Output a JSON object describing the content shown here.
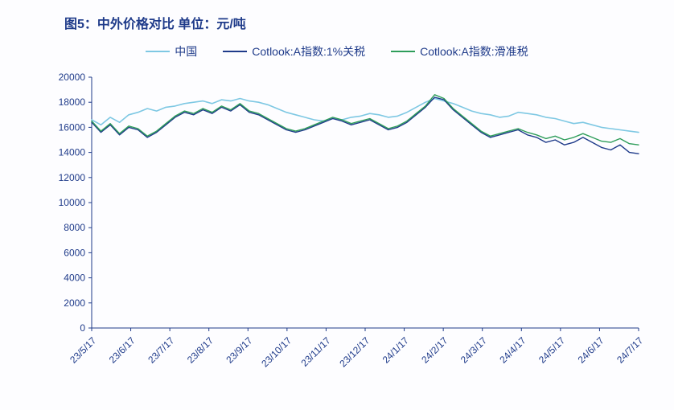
{
  "title": "图5：中外价格对比 单位：元/吨",
  "chart": {
    "type": "line",
    "background_color": "#fdfdff",
    "title_color": "#1f3b8a",
    "axis_color": "#1f3b8a",
    "label_color": "#1f3b8a",
    "label_fontsize": 12,
    "title_fontsize": 16,
    "ylim": [
      0,
      20000
    ],
    "ytick_step": 2000,
    "yticks": [
      0,
      2000,
      4000,
      6000,
      8000,
      10000,
      12000,
      14000,
      16000,
      18000,
      20000
    ],
    "x_categories": [
      "23/5/17",
      "23/6/17",
      "23/7/17",
      "23/8/17",
      "23/9/17",
      "23/10/17",
      "23/11/17",
      "23/12/17",
      "24/1/17",
      "24/2/17",
      "24/3/17",
      "24/4/17",
      "24/5/17",
      "24/6/17",
      "24/7/17"
    ],
    "x_label_rotation": -45,
    "legend_position": "top-center",
    "series": [
      {
        "name": "中国",
        "color": "#7ec8e3",
        "line_width": 1.6,
        "values": [
          16600,
          16200,
          16800,
          16400,
          17000,
          17200,
          17500,
          17300,
          17600,
          17700,
          17900,
          18000,
          18100,
          17900,
          18200,
          18100,
          18300,
          18100,
          18000,
          17800,
          17500,
          17200,
          17000,
          16800,
          16600,
          16500,
          16700,
          16600,
          16800,
          16900,
          17100,
          17000,
          16800,
          16900,
          17200,
          17600,
          18000,
          18300,
          18100,
          17900,
          17600,
          17300,
          17100,
          17000,
          16800,
          16900,
          17200,
          17100,
          17000,
          16800,
          16700,
          16500,
          16300,
          16400,
          16200,
          16000,
          15900,
          15800,
          15700,
          15600
        ]
      },
      {
        "name": "Cotlook:A指数:1%关税",
        "color": "#1f3b8a",
        "line_width": 1.4,
        "values": [
          16400,
          15600,
          16200,
          15400,
          16000,
          15800,
          15200,
          15600,
          16200,
          16800,
          17200,
          17000,
          17400,
          17100,
          17600,
          17300,
          17800,
          17200,
          17000,
          16600,
          16200,
          15800,
          15600,
          15800,
          16100,
          16400,
          16700,
          16500,
          16200,
          16400,
          16600,
          16200,
          15800,
          16000,
          16400,
          17000,
          17600,
          18400,
          18200,
          17400,
          16800,
          16200,
          15600,
          15200,
          15400,
          15600,
          15800,
          15400,
          15200,
          14800,
          15000,
          14600,
          14800,
          15200,
          14800,
          14400,
          14200,
          14600,
          14000,
          13900
        ]
      },
      {
        "name": "Cotlook:A指数:滑准税",
        "color": "#2e9d5a",
        "line_width": 1.4,
        "values": [
          16500,
          15700,
          16300,
          15500,
          16100,
          15900,
          15300,
          15700,
          16300,
          16900,
          17300,
          17100,
          17500,
          17200,
          17700,
          17400,
          17900,
          17300,
          17100,
          16700,
          16300,
          15900,
          15700,
          15900,
          16200,
          16500,
          16800,
          16600,
          16300,
          16500,
          16700,
          16300,
          15900,
          16100,
          16500,
          17100,
          17700,
          18600,
          18300,
          17500,
          16900,
          16300,
          15700,
          15300,
          15500,
          15700,
          15900,
          15600,
          15400,
          15100,
          15300,
          15000,
          15200,
          15500,
          15200,
          14900,
          14800,
          15100,
          14700,
          14600
        ]
      }
    ]
  }
}
